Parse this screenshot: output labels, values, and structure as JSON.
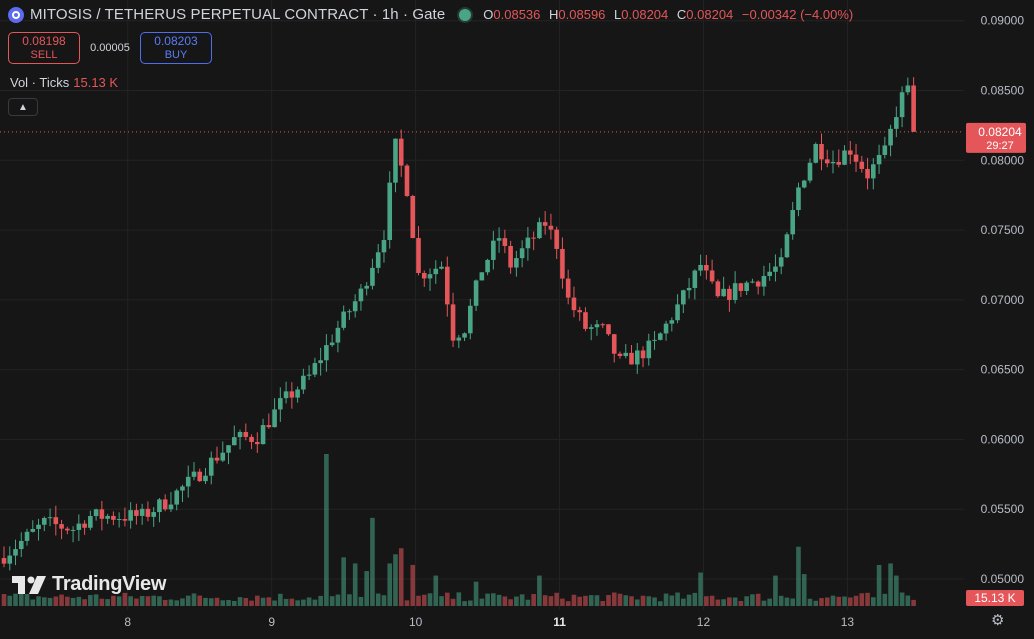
{
  "legend": {
    "title": "MITOSIS / TETHERUS PERPETUAL CONTRACT · 1h · Gate",
    "o_key": "O",
    "o_val": "0.08536",
    "h_key": "H",
    "h_val": "0.08596",
    "l_key": "L",
    "l_val": "0.08204",
    "c_key": "C",
    "c_val": "0.08204",
    "change": "−0.00342 (−4.00%)"
  },
  "trade": {
    "sell_price": "0.08198",
    "sell_label": "SELL",
    "spread": "0.00005",
    "buy_price": "0.08203",
    "buy_label": "BUY"
  },
  "volume_legend": {
    "label": "Vol · Ticks",
    "value": "15.13 K"
  },
  "watermark": "TradingView",
  "colors": {
    "up": "#4aa586",
    "down": "#e5565a",
    "background": "#161616",
    "grid": "#232323"
  },
  "icons": {
    "symbol": "mitosis-logo-icon",
    "status": "market-status-dot-icon",
    "collapse": "chevron-up-icon",
    "settings": "gear-icon"
  },
  "chart_data": {
    "type": "candlestick",
    "y_axis_ticks": [
      "0.09000",
      "0.08500",
      "0.08000",
      "0.07500",
      "0.07000",
      "0.06500",
      "0.06000",
      "0.05500",
      "0.05000"
    ],
    "ylim": [
      0.0478,
      0.0912
    ],
    "x_axis_ticks": [
      {
        "label": "8",
        "bold": false
      },
      {
        "label": "9",
        "bold": false
      },
      {
        "label": "10",
        "bold": false
      },
      {
        "label": "11",
        "bold": true
      },
      {
        "label": "12",
        "bold": false
      },
      {
        "label": "13",
        "bold": false
      }
    ],
    "current_price_label": "0.08204",
    "countdown_label": "29:27",
    "current_volume_label": "15.13 K",
    "keypoints": [
      {
        "x": 0,
        "y": 0.0517
      },
      {
        "x": 4,
        "y": 0.053
      },
      {
        "x": 7,
        "y": 0.054
      },
      {
        "x": 12,
        "y": 0.0536
      },
      {
        "x": 15,
        "y": 0.0545
      },
      {
        "x": 20,
        "y": 0.0545
      },
      {
        "x": 24,
        "y": 0.0545
      },
      {
        "x": 28,
        "y": 0.0555
      },
      {
        "x": 33,
        "y": 0.0572
      },
      {
        "x": 40,
        "y": 0.06
      },
      {
        "x": 44,
        "y": 0.0602
      },
      {
        "x": 48,
        "y": 0.0625
      },
      {
        "x": 53,
        "y": 0.0645
      },
      {
        "x": 58,
        "y": 0.068
      },
      {
        "x": 62,
        "y": 0.0705
      },
      {
        "x": 66,
        "y": 0.0748
      },
      {
        "x": 68,
        "y": 0.081
      },
      {
        "x": 70,
        "y": 0.078
      },
      {
        "x": 72,
        "y": 0.0718
      },
      {
        "x": 76,
        "y": 0.0725
      },
      {
        "x": 78,
        "y": 0.0675
      },
      {
        "x": 80,
        "y": 0.068
      },
      {
        "x": 83,
        "y": 0.0722
      },
      {
        "x": 86,
        "y": 0.0745
      },
      {
        "x": 88,
        "y": 0.0725
      },
      {
        "x": 92,
        "y": 0.0745
      },
      {
        "x": 94,
        "y": 0.0755
      },
      {
        "x": 96,
        "y": 0.074
      },
      {
        "x": 98,
        "y": 0.07
      },
      {
        "x": 101,
        "y": 0.068
      },
      {
        "x": 104,
        "y": 0.0678
      },
      {
        "x": 107,
        "y": 0.0655
      },
      {
        "x": 110,
        "y": 0.066
      },
      {
        "x": 113,
        "y": 0.0668
      },
      {
        "x": 118,
        "y": 0.0702
      },
      {
        "x": 121,
        "y": 0.0725
      },
      {
        "x": 124,
        "y": 0.07
      },
      {
        "x": 128,
        "y": 0.071
      },
      {
        "x": 131,
        "y": 0.0715
      },
      {
        "x": 135,
        "y": 0.0725
      },
      {
        "x": 138,
        "y": 0.078
      },
      {
        "x": 141,
        "y": 0.081
      },
      {
        "x": 144,
        "y": 0.08
      },
      {
        "x": 147,
        "y": 0.0808
      },
      {
        "x": 150,
        "y": 0.079
      },
      {
        "x": 153,
        "y": 0.0805
      },
      {
        "x": 155,
        "y": 0.0835
      },
      {
        "x": 157,
        "y": 0.0855
      },
      {
        "x": 158,
        "y": 0.082
      }
    ],
    "volume_spikes": [
      {
        "x": 56,
        "v": 1.0
      },
      {
        "x": 59,
        "v": 0.32
      },
      {
        "x": 61,
        "v": 0.28
      },
      {
        "x": 63,
        "v": 0.23
      },
      {
        "x": 64,
        "v": 0.58
      },
      {
        "x": 67,
        "v": 0.28
      },
      {
        "x": 68,
        "v": 0.34
      },
      {
        "x": 69,
        "v": 0.38
      },
      {
        "x": 71,
        "v": 0.27
      },
      {
        "x": 75,
        "v": 0.2
      },
      {
        "x": 82,
        "v": 0.16
      },
      {
        "x": 93,
        "v": 0.2
      },
      {
        "x": 121,
        "v": 0.22
      },
      {
        "x": 134,
        "v": 0.2
      },
      {
        "x": 138,
        "v": 0.39
      },
      {
        "x": 139,
        "v": 0.21
      },
      {
        "x": 152,
        "v": 0.27
      },
      {
        "x": 154,
        "v": 0.28
      },
      {
        "x": 155,
        "v": 0.2
      }
    ]
  }
}
